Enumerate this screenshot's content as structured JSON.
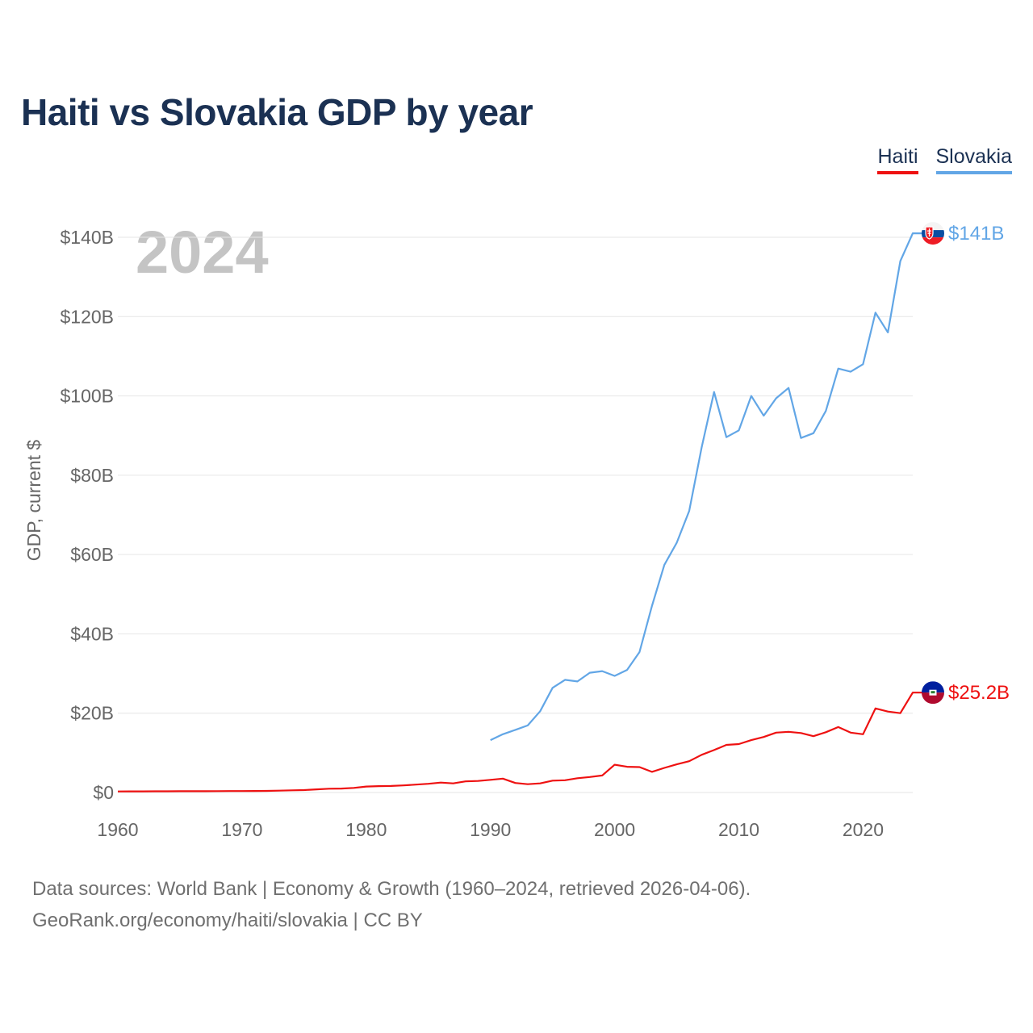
{
  "title": "Haiti vs Slovakia GDP by year",
  "legend": {
    "haiti": "Haiti",
    "slovakia": "Slovakia"
  },
  "year_label": "2024",
  "footer": {
    "line1": "Data sources: World Bank | Economy & Growth (1960–2024, retrieved 2026-04-06).",
    "line2": "GeoRank.org/economy/haiti/slovakia | CC BY"
  },
  "colors": {
    "haiti": "#ee1111",
    "slovakia": "#62a6e6",
    "grid": "#e6e6e6",
    "text": "#666666",
    "year": "#c4c4c4"
  },
  "chart_data": {
    "type": "line",
    "title": "Haiti vs Slovakia GDP by year",
    "ylabel": "GDP, current $",
    "xlabel": "",
    "xlim": [
      1960,
      2024
    ],
    "ylim": [
      0,
      140
    ],
    "y_unit": "billions USD",
    "x_ticks": [
      1960,
      1970,
      1980,
      1990,
      2000,
      2010,
      2020
    ],
    "y_ticks": [
      0,
      20,
      40,
      60,
      80,
      100,
      120,
      140
    ],
    "y_tick_labels": [
      "$0",
      "$20B",
      "$40B",
      "$60B",
      "$80B",
      "$100B",
      "$120B",
      "$140B"
    ],
    "series": [
      {
        "name": "Haiti",
        "end_label": "$25.2B",
        "x": [
          1960,
          1961,
          1962,
          1963,
          1964,
          1965,
          1966,
          1967,
          1968,
          1969,
          1970,
          1971,
          1972,
          1973,
          1974,
          1975,
          1976,
          1977,
          1978,
          1979,
          1980,
          1981,
          1982,
          1983,
          1984,
          1985,
          1986,
          1987,
          1988,
          1989,
          1990,
          1991,
          1992,
          1993,
          1994,
          1995,
          1996,
          1997,
          1998,
          1999,
          2000,
          2001,
          2002,
          2003,
          2004,
          2005,
          2006,
          2007,
          2008,
          2009,
          2010,
          2011,
          2012,
          2013,
          2014,
          2015,
          2016,
          2017,
          2018,
          2019,
          2020,
          2021,
          2022,
          2023,
          2024
        ],
        "values": [
          0.27,
          0.28,
          0.29,
          0.3,
          0.3,
          0.32,
          0.33,
          0.33,
          0.34,
          0.36,
          0.37,
          0.38,
          0.41,
          0.47,
          0.55,
          0.62,
          0.8,
          0.95,
          1.0,
          1.15,
          1.5,
          1.6,
          1.65,
          1.8,
          2.0,
          2.2,
          2.5,
          2.3,
          2.8,
          2.9,
          3.2,
          3.5,
          2.4,
          2.1,
          2.3,
          3.0,
          3.1,
          3.6,
          3.9,
          4.3,
          7.0,
          6.5,
          6.4,
          5.2,
          6.2,
          7.1,
          7.9,
          9.5,
          10.7,
          12.0,
          12.2,
          13.2,
          14.0,
          15.1,
          15.3,
          15.0,
          14.2,
          15.2,
          16.5,
          15.1,
          14.7,
          21.2,
          20.4,
          20.0,
          25.2
        ]
      },
      {
        "name": "Slovakia",
        "end_label": "$141B",
        "x": [
          1990,
          1991,
          1992,
          1993,
          1994,
          1995,
          1996,
          1997,
          1998,
          1999,
          2000,
          2001,
          2002,
          2003,
          2004,
          2005,
          2006,
          2007,
          2008,
          2009,
          2010,
          2011,
          2012,
          2013,
          2014,
          2015,
          2016,
          2017,
          2018,
          2019,
          2020,
          2021,
          2022,
          2023,
          2024
        ],
        "values": [
          13.2,
          14.7,
          15.8,
          16.9,
          20.5,
          26.4,
          28.4,
          28.0,
          30.2,
          30.6,
          29.4,
          30.9,
          35.4,
          47.0,
          57.4,
          63.0,
          71.0,
          87.0,
          101.0,
          89.6,
          91.3,
          100.0,
          95.0,
          99.4,
          102.0,
          89.4,
          90.6,
          96.2,
          106.9,
          106.1,
          108.0,
          121.0,
          116.0,
          134.0,
          141.0
        ]
      }
    ]
  }
}
